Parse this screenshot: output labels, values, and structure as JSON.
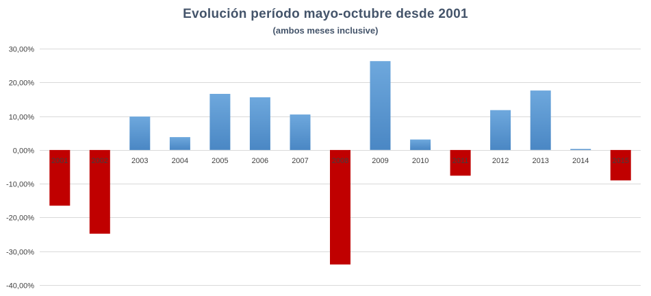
{
  "chart_data": {
    "type": "bar",
    "title": "Evolución período mayo-octubre desde 2001",
    "subtitle": "(ambos meses inclusive)",
    "xlabel": "",
    "ylabel": "",
    "ylim": [
      -40,
      30
    ],
    "yticks": [
      30,
      20,
      10,
      0,
      -10,
      -20,
      -30,
      -40
    ],
    "ytick_labels": [
      "30,00%",
      "20,00%",
      "10,00%",
      "0,00%",
      "-10,00%",
      "-20,00%",
      "-30,00%",
      "-40,00%"
    ],
    "grid": true,
    "categories": [
      "2001",
      "2002",
      "2003",
      "2004",
      "2005",
      "2006",
      "2007",
      "2008",
      "2009",
      "2010",
      "2011",
      "2012",
      "2013",
      "2014",
      "2015"
    ],
    "values": [
      -16.5,
      -24.8,
      9.9,
      3.8,
      16.6,
      15.6,
      10.5,
      -33.9,
      26.3,
      3.1,
      -7.6,
      11.8,
      17.6,
      0.3,
      -9.0
    ],
    "colors": {
      "positive": "#5b9bd5",
      "negative": "#c00000",
      "grid": "#d9d9d9",
      "title": "#44546a"
    }
  }
}
